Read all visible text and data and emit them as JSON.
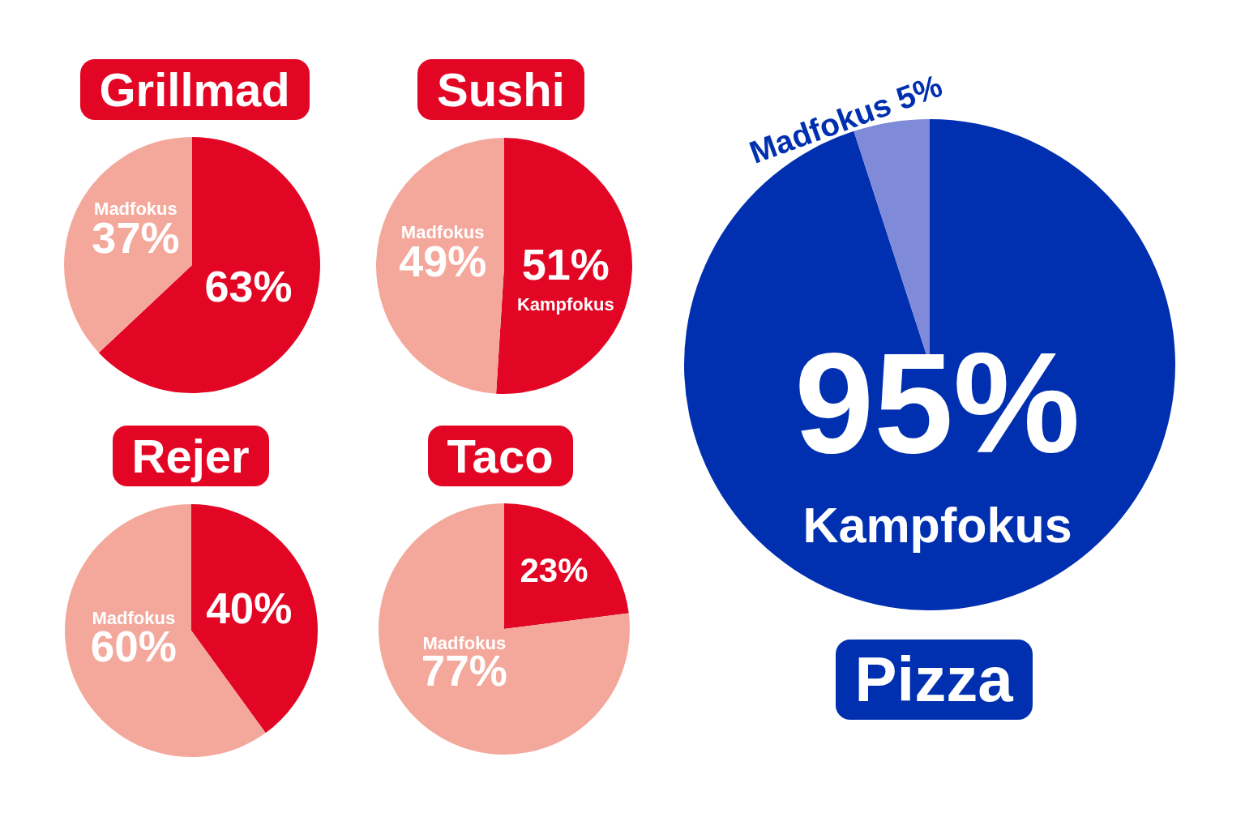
{
  "chart_data": [
    {
      "type": "pie",
      "title": "Grillmad",
      "categories": [
        null,
        "Madfokus"
      ],
      "values": [
        63,
        37
      ],
      "value_labels": [
        "63%",
        "37%"
      ],
      "colors": [
        "#e30524",
        "#f4a89c"
      ],
      "legend": false
    },
    {
      "type": "pie",
      "title": "Sushi",
      "categories": [
        "Kampfokus",
        "Madfokus"
      ],
      "values": [
        51,
        49
      ],
      "value_labels": [
        "51%",
        "49%"
      ],
      "colors": [
        "#e30524",
        "#f4a89c"
      ],
      "legend": false
    },
    {
      "type": "pie",
      "title": "Rejer",
      "categories": [
        null,
        "Madfokus"
      ],
      "values": [
        40,
        60
      ],
      "value_labels": [
        "40%",
        "60%"
      ],
      "colors": [
        "#e30524",
        "#f4a89c"
      ],
      "legend": false
    },
    {
      "type": "pie",
      "title": "Taco",
      "categories": [
        null,
        "Madfokus"
      ],
      "values": [
        23,
        77
      ],
      "value_labels": [
        "23%",
        "77%"
      ],
      "colors": [
        "#e30524",
        "#f4a89c"
      ],
      "legend": false
    },
    {
      "type": "pie",
      "title": "Pizza",
      "categories": [
        "Kampfokus",
        "Madfokus"
      ],
      "values": [
        95,
        5
      ],
      "value_labels": [
        "95%",
        "5%"
      ],
      "colors": [
        "#0030b0",
        "#7f8ad8"
      ],
      "legend": false
    }
  ]
}
